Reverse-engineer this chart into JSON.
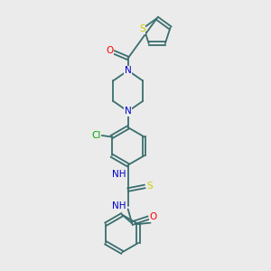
{
  "bg_color": "#ebebeb",
  "atom_colors": {
    "N": "#0000cc",
    "O": "#ff0000",
    "S": "#cccc00",
    "Cl": "#00aa00",
    "C": "#000000",
    "H": "#555555"
  },
  "line_color": "#3a6e6e",
  "lw": 1.3,
  "fs": 7.5
}
